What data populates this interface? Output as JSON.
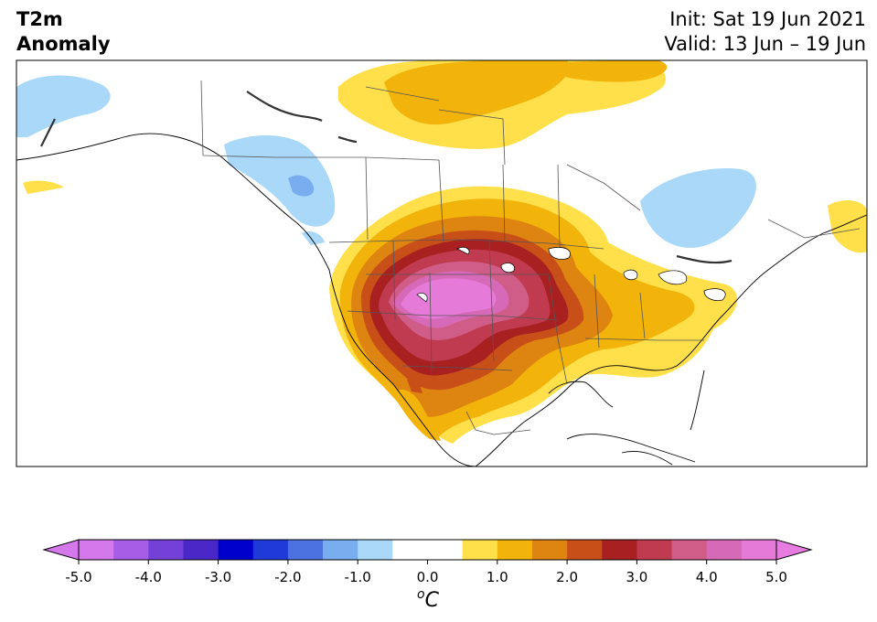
{
  "title": {
    "line1": "T2m",
    "line2": "Anomaly"
  },
  "subtitle": {
    "init": "Init: Sat 19 Jun 2021",
    "valid": "Valid: 13 Jun – 19 Jun"
  },
  "colorbar": {
    "ticks": [
      "-5.0",
      "-4.0",
      "-3.0",
      "-2.0",
      "-1.0",
      "0.0",
      "1.0",
      "2.0",
      "3.0",
      "4.0",
      "5.0"
    ],
    "tick_values": [
      -5,
      -4,
      -3,
      -2,
      -1,
      0,
      1,
      2,
      3,
      4,
      5
    ],
    "unit_super": "o",
    "unit": "C",
    "colors": [
      "#a85de6",
      "#7340d8",
      "#4a28c8",
      "#0000cc",
      "#1f3ad8",
      "#4b72e0",
      "#78aef0",
      "#a9d8f8",
      "#ffffff",
      "#ffffff",
      "#ffe04a",
      "#f2b40a",
      "#de8410",
      "#c85018",
      "#a82020",
      "#c03a50",
      "#d05c88",
      "#d66ab8",
      "#e57ad8"
    ],
    "under_color": "#d478ec",
    "over_color": "#e77ce0"
  }
}
